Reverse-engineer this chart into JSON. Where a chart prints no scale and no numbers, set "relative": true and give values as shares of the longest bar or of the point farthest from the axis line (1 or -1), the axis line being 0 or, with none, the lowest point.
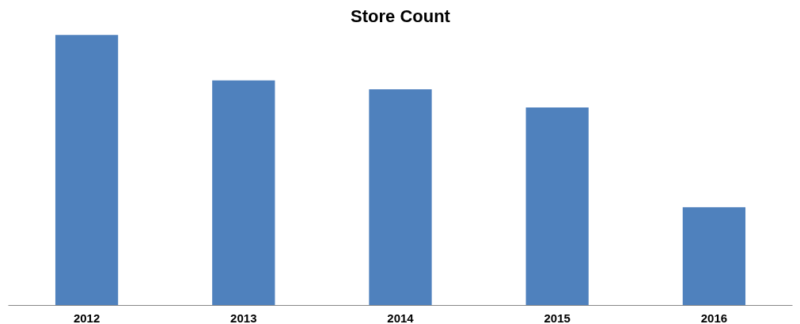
{
  "chart_data": {
    "type": "bar",
    "title": "Store Count",
    "relative": true,
    "categories": [
      "2012",
      "2013",
      "2014",
      "2015",
      "2016"
    ],
    "values": [
      1,
      0.832,
      0.799,
      0.732,
      0.363
    ],
    "color": "#4f81bd",
    "grid": false
  }
}
